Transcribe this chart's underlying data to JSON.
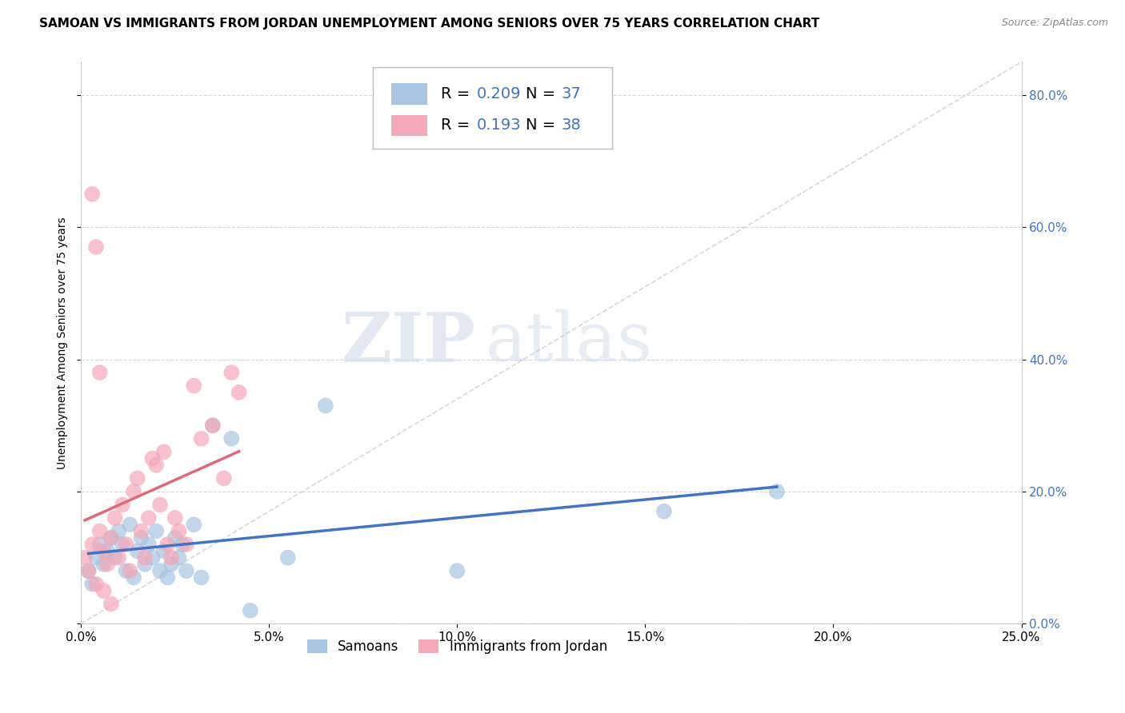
{
  "title": "SAMOAN VS IMMIGRANTS FROM JORDAN UNEMPLOYMENT AMONG SENIORS OVER 75 YEARS CORRELATION CHART",
  "source": "Source: ZipAtlas.com",
  "ylabel": "Unemployment Among Seniors over 75 years",
  "xlim": [
    0.0,
    0.25
  ],
  "ylim": [
    0.0,
    0.85
  ],
  "blue_R": "0.209",
  "blue_N": "37",
  "pink_R": "0.193",
  "pink_N": "38",
  "blue_color": "#a8c4e0",
  "pink_color": "#f4a8b8",
  "blue_line_color": "#4472c4",
  "pink_line_color": "#e06878",
  "diag_line_color": "#c8c8c8",
  "grid_color": "#d8d8d8",
  "watermark_zip": "ZIP",
  "watermark_atlas": "atlas",
  "legend_label_blue": "Samoans",
  "legend_label_pink": "Immigrants from Jordan",
  "samoans_x": [
    0.002,
    0.003,
    0.004,
    0.005,
    0.006,
    0.007,
    0.008,
    0.009,
    0.01,
    0.011,
    0.012,
    0.013,
    0.014,
    0.015,
    0.016,
    0.017,
    0.018,
    0.019,
    0.02,
    0.021,
    0.022,
    0.023,
    0.024,
    0.025,
    0.026,
    0.027,
    0.028,
    0.03,
    0.032,
    0.035,
    0.04,
    0.055,
    0.065,
    0.1,
    0.155,
    0.185,
    0.045
  ],
  "samoans_y": [
    0.08,
    0.06,
    0.1,
    0.12,
    0.09,
    0.11,
    0.13,
    0.1,
    0.14,
    0.12,
    0.08,
    0.15,
    0.07,
    0.11,
    0.13,
    0.09,
    0.12,
    0.1,
    0.14,
    0.08,
    0.11,
    0.07,
    0.09,
    0.13,
    0.1,
    0.12,
    0.08,
    0.15,
    0.07,
    0.3,
    0.28,
    0.1,
    0.33,
    0.08,
    0.17,
    0.2,
    0.02
  ],
  "jordan_x": [
    0.001,
    0.002,
    0.003,
    0.004,
    0.005,
    0.006,
    0.007,
    0.008,
    0.009,
    0.01,
    0.011,
    0.012,
    0.013,
    0.014,
    0.015,
    0.016,
    0.017,
    0.018,
    0.019,
    0.02,
    0.021,
    0.022,
    0.023,
    0.024,
    0.025,
    0.026,
    0.028,
    0.03,
    0.032,
    0.035,
    0.038,
    0.04,
    0.042,
    0.003,
    0.004,
    0.005,
    0.006,
    0.008
  ],
  "jordan_y": [
    0.1,
    0.08,
    0.12,
    0.06,
    0.14,
    0.11,
    0.09,
    0.13,
    0.16,
    0.1,
    0.18,
    0.12,
    0.08,
    0.2,
    0.22,
    0.14,
    0.1,
    0.16,
    0.25,
    0.24,
    0.18,
    0.26,
    0.12,
    0.1,
    0.16,
    0.14,
    0.12,
    0.36,
    0.28,
    0.3,
    0.22,
    0.38,
    0.35,
    0.65,
    0.57,
    0.38,
    0.05,
    0.03
  ],
  "title_fontsize": 11,
  "axis_label_fontsize": 10,
  "tick_fontsize": 11,
  "legend_fontsize": 14
}
